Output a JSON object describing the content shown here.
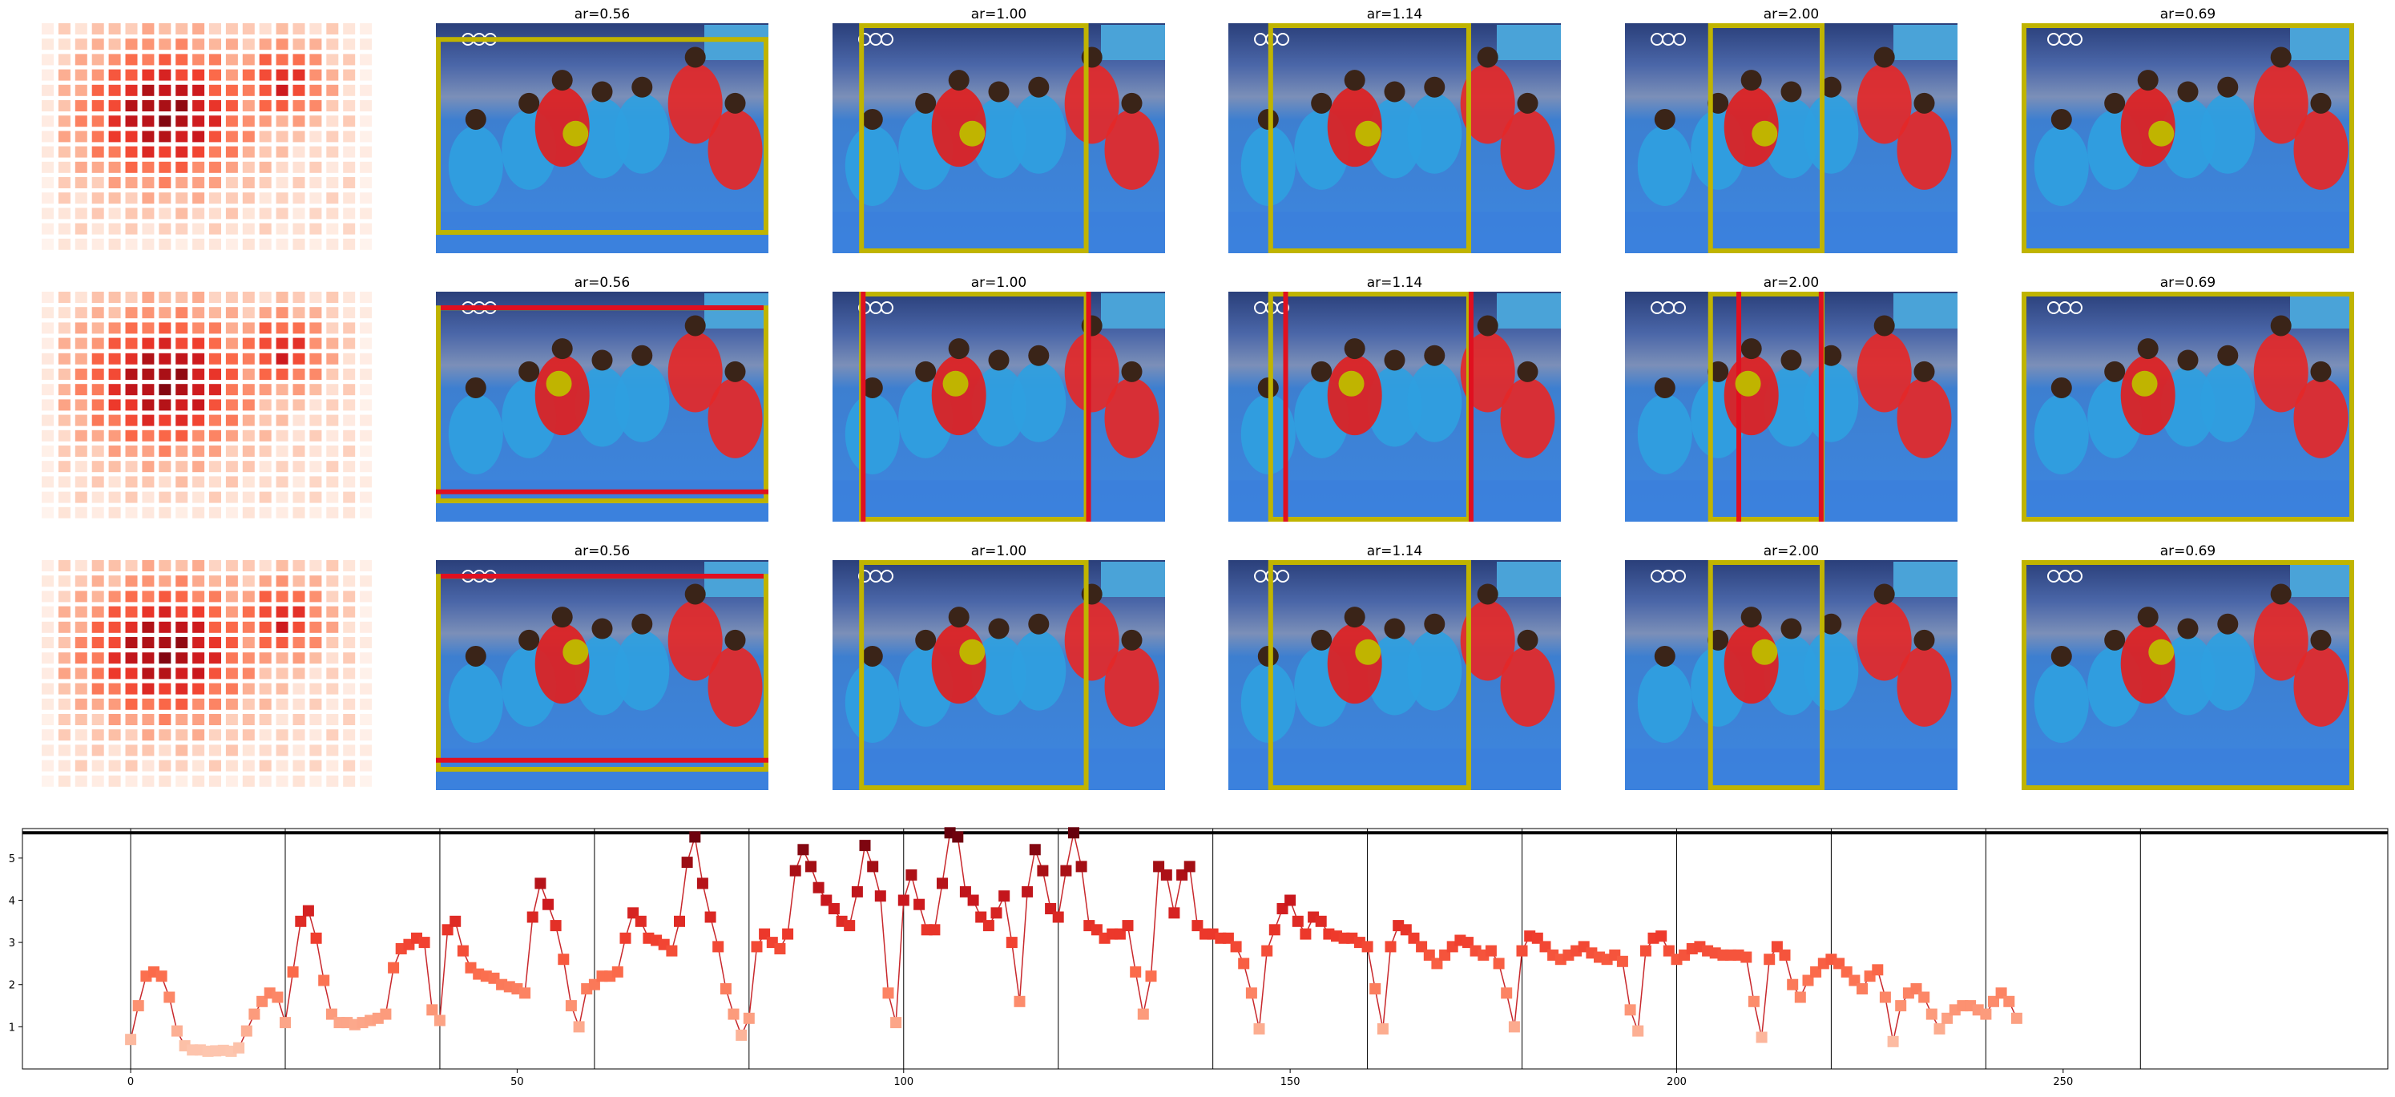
{
  "chart_data": [
    {
      "type": "heatmap",
      "panel": "score-grid",
      "colormap": "Reds",
      "rows": 15,
      "cols": 20,
      "repeated_in_rows": 3,
      "description_of_values": "low values near edges, high values in center-left and upper-right clusters"
    },
    {
      "type": "image-grid",
      "panel_titles": [
        "ar=0.56",
        "ar=1.00",
        "ar=1.14",
        "ar=2.00",
        "ar=0.69"
      ],
      "box_colors": {
        "crop": "#c0b400",
        "target": "#e01020",
        "point": "#c0b400"
      }
    },
    {
      "type": "line",
      "xlim": [
        -14,
        292
      ],
      "ylim": [
        0,
        5.7
      ],
      "xticks": [
        "0",
        "50",
        "100",
        "150",
        "200",
        "250"
      ],
      "xtick_values": [
        0,
        50,
        100,
        150,
        200,
        250
      ],
      "yticks": [
        "1",
        "2",
        "3",
        "4",
        "5"
      ],
      "ytick_values": [
        1,
        2,
        3,
        4,
        5
      ],
      "vlines": [
        0,
        20,
        40,
        60,
        80,
        100,
        120,
        140,
        160,
        180,
        200,
        220,
        240,
        260
      ],
      "hline": 5.6,
      "color": "#c8282c",
      "x_start": 0,
      "values": [
        0.7,
        1.5,
        2.2,
        2.3,
        2.2,
        1.7,
        0.9,
        0.55,
        0.45,
        0.45,
        0.42,
        0.43,
        0.44,
        0.42,
        0.5,
        0.9,
        1.3,
        1.6,
        1.8,
        1.7,
        1.1,
        2.3,
        3.5,
        3.75,
        3.1,
        2.1,
        1.3,
        1.1,
        1.1,
        1.05,
        1.1,
        1.15,
        1.2,
        1.3,
        2.4,
        2.85,
        2.95,
        3.1,
        3.0,
        1.4,
        1.15,
        3.3,
        3.5,
        2.8,
        2.4,
        2.25,
        2.2,
        2.15,
        2.0,
        1.95,
        1.9,
        1.8,
        3.6,
        4.4,
        3.9,
        3.4,
        2.6,
        1.5,
        1.0,
        1.9,
        2.0,
        2.2,
        2.2,
        2.3,
        3.1,
        3.7,
        3.5,
        3.1,
        3.05,
        2.95,
        2.8,
        3.5,
        4.9,
        5.5,
        4.4,
        3.6,
        2.9,
        1.9,
        1.3,
        0.8,
        1.2,
        2.9,
        3.2,
        3.0,
        2.85,
        3.2,
        4.7,
        5.2,
        4.8,
        4.3,
        4.0,
        3.8,
        3.5,
        3.4,
        4.2,
        5.3,
        4.8,
        4.1,
        1.8,
        1.1,
        4.0,
        4.6,
        3.9,
        3.3,
        3.3,
        4.4,
        5.6,
        5.5,
        4.2,
        4.0,
        3.6,
        3.4,
        3.7,
        4.1,
        3.0,
        1.6,
        4.2,
        5.2,
        4.7,
        3.8,
        3.6,
        4.7,
        5.6,
        4.8,
        3.4,
        3.3,
        3.1,
        3.2,
        3.2,
        3.4,
        2.3,
        1.3,
        2.2,
        4.8,
        4.6,
        3.7,
        4.6,
        4.8,
        3.4,
        3.2,
        3.2,
        3.1,
        3.1,
        2.9,
        2.5,
        1.8,
        0.95,
        2.8,
        3.3,
        3.8,
        4.0,
        3.5,
        3.2,
        3.6,
        3.5,
        3.2,
        3.15,
        3.1,
        3.1,
        3.0,
        2.9,
        1.9,
        0.95,
        2.9,
        3.4,
        3.3,
        3.1,
        2.9,
        2.7,
        2.5,
        2.7,
        2.9,
        3.05,
        3.0,
        2.8,
        2.7,
        2.8,
        2.5,
        1.8,
        1.0,
        2.8,
        3.15,
        3.1,
        2.9,
        2.7,
        2.6,
        2.7,
        2.8,
        2.9,
        2.75,
        2.65,
        2.6,
        2.7,
        2.55,
        1.4,
        0.9,
        2.8,
        3.1,
        3.15,
        2.8,
        2.6,
        2.7,
        2.85,
        2.9,
        2.8,
        2.75,
        2.7,
        2.7,
        2.7,
        2.65,
        1.6,
        0.75,
        2.6,
        2.9,
        2.7,
        2.0,
        1.7,
        2.1,
        2.3,
        2.5,
        2.6,
        2.5,
        2.3,
        2.1,
        1.9,
        2.2,
        2.35,
        1.7,
        0.65,
        1.5,
        1.8,
        1.9,
        1.7,
        1.3,
        0.95,
        1.2,
        1.4,
        1.5,
        1.5,
        1.4,
        1.3,
        1.6,
        1.8,
        1.6,
        1.2
      ]
    }
  ]
}
